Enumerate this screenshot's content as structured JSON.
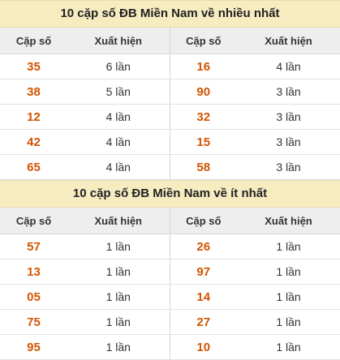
{
  "sections": [
    {
      "title": "10 cặp số ĐB Miền Nam về nhiều nhất",
      "headers": [
        "Cặp số",
        "Xuất hiện",
        "Cặp số",
        "Xuất hiện"
      ],
      "rows": [
        {
          "a": "35",
          "ac": "6 lần",
          "b": "16",
          "bc": "4 lần"
        },
        {
          "a": "38",
          "ac": "5 lần",
          "b": "90",
          "bc": "3 lần"
        },
        {
          "a": "12",
          "ac": "4 lần",
          "b": "32",
          "bc": "3 lần"
        },
        {
          "a": "42",
          "ac": "4 lần",
          "b": "15",
          "bc": "3 lần"
        },
        {
          "a": "65",
          "ac": "4 lần",
          "b": "58",
          "bc": "3 lần"
        }
      ]
    },
    {
      "title": "10 cặp số ĐB Miền Nam về ít nhất",
      "headers": [
        "Cặp số",
        "Xuất hiện",
        "Cặp số",
        "Xuất hiện"
      ],
      "rows": [
        {
          "a": "57",
          "ac": "1 lần",
          "b": "26",
          "bc": "1 lần"
        },
        {
          "a": "13",
          "ac": "1 lần",
          "b": "97",
          "bc": "1 lần"
        },
        {
          "a": "05",
          "ac": "1 lần",
          "b": "14",
          "bc": "1 lần"
        },
        {
          "a": "75",
          "ac": "1 lần",
          "b": "27",
          "bc": "1 lần"
        },
        {
          "a": "95",
          "ac": "1 lần",
          "b": "10",
          "bc": "1 lần"
        }
      ]
    }
  ],
  "colors": {
    "title_bg": "#f7ecc0",
    "header_bg": "#eeeeee",
    "number": "#d35400"
  }
}
